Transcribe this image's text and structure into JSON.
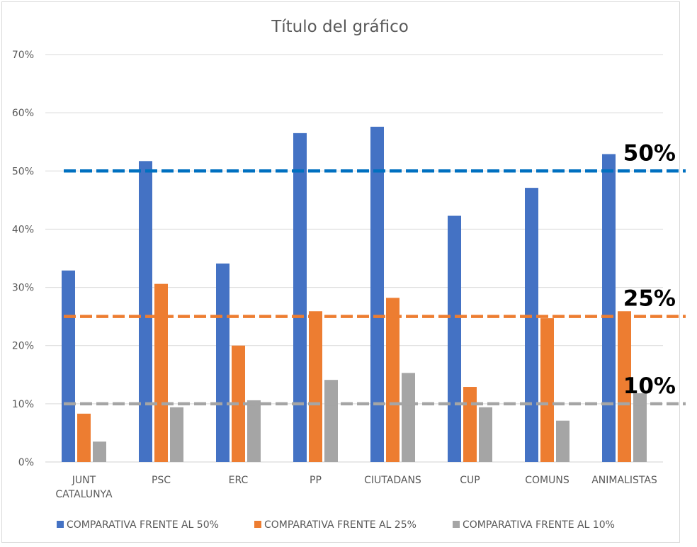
{
  "chart_data": {
    "type": "bar",
    "title": "Título del gráfico",
    "xlabel": "",
    "ylabel": "",
    "ylim": [
      0,
      70
    ],
    "y_ticks": [
      {
        "value": 0,
        "label": "0%"
      },
      {
        "value": 10,
        "label": "10%"
      },
      {
        "value": 20,
        "label": "20%"
      },
      {
        "value": 30,
        "label": "30%"
      },
      {
        "value": 40,
        "label": "40%"
      },
      {
        "value": 50,
        "label": "50%"
      },
      {
        "value": 60,
        "label": "60%"
      },
      {
        "value": 70,
        "label": "70%"
      }
    ],
    "grid": true,
    "legend_position": "bottom",
    "categories": [
      [
        "JUNT",
        "CATALUNYA"
      ],
      [
        "PSC"
      ],
      [
        "ERC"
      ],
      [
        "PP"
      ],
      [
        "CIUTADANS"
      ],
      [
        "CUP"
      ],
      [
        "COMUNS"
      ],
      [
        "ANIMALISTAS"
      ]
    ],
    "series": [
      {
        "name": "COMPARATIVA FRENTE AL 50%",
        "color": "#4472c4",
        "values": [
          32.9,
          51.7,
          34.1,
          56.5,
          57.6,
          42.3,
          47.1,
          52.9
        ]
      },
      {
        "name": "COMPARATIVA FRENTE AL 25%",
        "color": "#ed7d31",
        "values": [
          8.3,
          30.6,
          20.0,
          25.9,
          28.2,
          12.9,
          24.7,
          25.9
        ]
      },
      {
        "name": "COMPARATIVA FRENTE AL 10%",
        "color": "#a5a5a5",
        "values": [
          3.5,
          9.4,
          10.6,
          14.1,
          15.3,
          9.4,
          7.1,
          11.8
        ]
      }
    ],
    "reference_lines": [
      {
        "value": 50,
        "label": "50%",
        "color": "#0070c0",
        "style": "dashed"
      },
      {
        "value": 25,
        "label": "25%",
        "color": "#ed7d31",
        "style": "dashed"
      },
      {
        "value": 10,
        "label": "10%",
        "color": "#a5a5a5",
        "style": "dashed"
      }
    ]
  }
}
